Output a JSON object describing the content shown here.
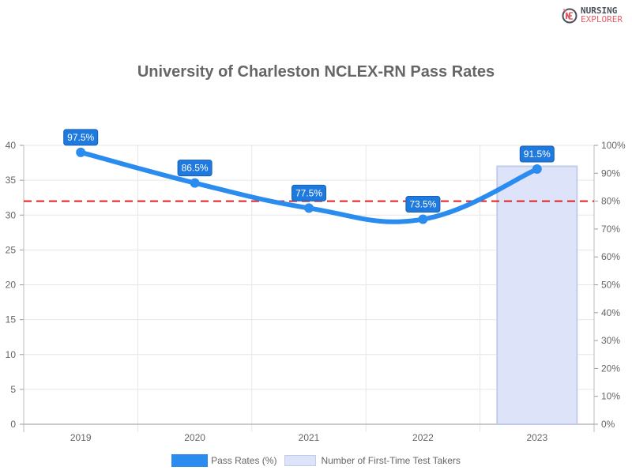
{
  "brand": {
    "line1": "NURSING",
    "line2": "EXPLORER",
    "icon": "nursing-explorer-logo-icon"
  },
  "chart_data": {
    "type": "bar+line",
    "title": "University of Charleston NCLEX-RN Pass Rates",
    "categories": [
      "2019",
      "2020",
      "2021",
      "2022",
      "2023"
    ],
    "series": [
      {
        "name": "Pass Rates (%)",
        "type": "line",
        "axis": "right",
        "values": [
          97.5,
          86.5,
          77.5,
          73.5,
          91.5
        ],
        "labels": [
          "97.5%",
          "86.5%",
          "77.5%",
          "73.5%",
          "91.5%"
        ],
        "color": "#2b8cf0"
      },
      {
        "name": "Number of First-Time Test Takers",
        "type": "bar",
        "axis": "left",
        "values": [
          null,
          null,
          null,
          null,
          37
        ],
        "color": "#dde3f8"
      }
    ],
    "reference_line": {
      "value": 80,
      "axis": "right",
      "color": "#e02020",
      "style": "dashed"
    },
    "left_axis": {
      "ticks": [
        "0",
        "5",
        "10",
        "15",
        "20",
        "25",
        "30",
        "35",
        "40"
      ],
      "ylim": [
        0,
        40
      ]
    },
    "right_axis": {
      "ticks": [
        "0%",
        "10%",
        "20%",
        "30%",
        "40%",
        "50%",
        "60%",
        "70%",
        "80%",
        "90%",
        "100%"
      ],
      "ylim": [
        0,
        100
      ]
    },
    "grid": true,
    "legend_position": "bottom"
  },
  "legend": {
    "item1": "Pass Rates (%)",
    "item2": "Number of First-Time Test Takers"
  }
}
